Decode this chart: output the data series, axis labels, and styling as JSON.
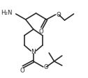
{
  "bg_color": "#ffffff",
  "line_color": "#2a2a2a",
  "lw": 1.2,
  "figsize": [
    1.26,
    1.12
  ],
  "dpi": 100,
  "labels": {
    "H2N": "H₂N",
    "N": "N",
    "O": "O"
  }
}
